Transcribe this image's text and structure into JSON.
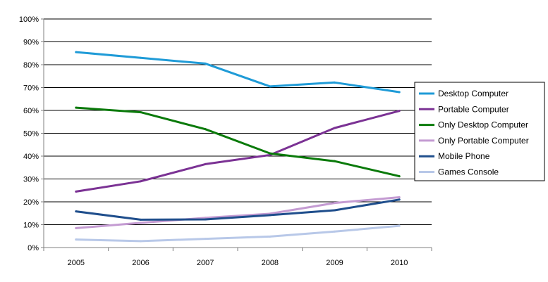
{
  "chart_data": {
    "type": "line",
    "x": [
      "2005",
      "2006",
      "2007",
      "2008",
      "2009",
      "2010"
    ],
    "ylim": [
      0,
      100
    ],
    "ytick_labels": [
      "0%",
      "10%",
      "20%",
      "30%",
      "40%",
      "50%",
      "60%",
      "70%",
      "80%",
      "90%",
      "100%"
    ],
    "grid": true,
    "legend_position": "right",
    "series": [
      {
        "name": "Desktop Computer",
        "color": "#1F9BD7",
        "values": [
          85.5,
          83,
          80.5,
          70.5,
          72.2,
          68
        ]
      },
      {
        "name": "Portable Computer",
        "color": "#7B3294",
        "values": [
          24.5,
          29,
          36.5,
          40.5,
          52.3,
          59.8
        ]
      },
      {
        "name": "Only Desktop Computer",
        "color": "#0A7A0A",
        "values": [
          61.2,
          59.2,
          51.8,
          41.2,
          37.8,
          31.2
        ]
      },
      {
        "name": "Only Portable Computer",
        "color": "#C49BD2",
        "values": [
          8.5,
          10.8,
          13,
          14.8,
          19.5,
          22
        ]
      },
      {
        "name": "Mobile Phone",
        "color": "#1F4E8C",
        "values": [
          15.8,
          12.2,
          12.3,
          14.2,
          16.3,
          21
        ]
      },
      {
        "name": "Games Console",
        "color": "#B8C8E8",
        "values": [
          3.5,
          2.8,
          3.8,
          4.8,
          7,
          9.5
        ]
      }
    ]
  }
}
